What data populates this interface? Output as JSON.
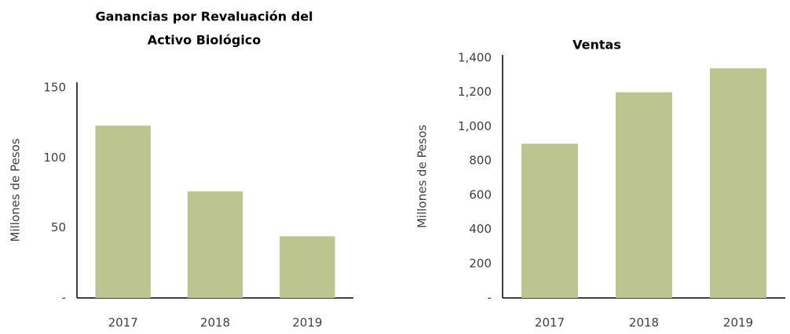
{
  "chart_data": [
    {
      "type": "bar",
      "title": [
        "Ganancias  por Revaluación  del",
        "Activo Biológico"
      ],
      "y_label": "Millones de Pesos",
      "categories": [
        "2017",
        "2018",
        "2019"
      ],
      "values": [
        123,
        76,
        44
      ],
      "color": "#bcc48f",
      "ylim": [
        0,
        150
      ],
      "yticks": [
        {
          "value": 0,
          "label": "-"
        },
        50,
        100,
        150
      ],
      "grid": false
    },
    {
      "type": "bar",
      "title": [
        "Ventas"
      ],
      "y_label": "Millones de Pesos",
      "categories": [
        "2017",
        "2018",
        "2019"
      ],
      "values": [
        900,
        1200,
        1340
      ],
      "color": "#bcc48f",
      "ylim": [
        0,
        1400
      ],
      "yticks": [
        {
          "value": 0,
          "label": "-"
        },
        200,
        400,
        600,
        800,
        {
          "value": 1000,
          "label": "1,000"
        },
        {
          "value": 1200,
          "label": "1,200"
        },
        {
          "value": 1400,
          "label": "1,400"
        }
      ],
      "grid": false
    }
  ]
}
